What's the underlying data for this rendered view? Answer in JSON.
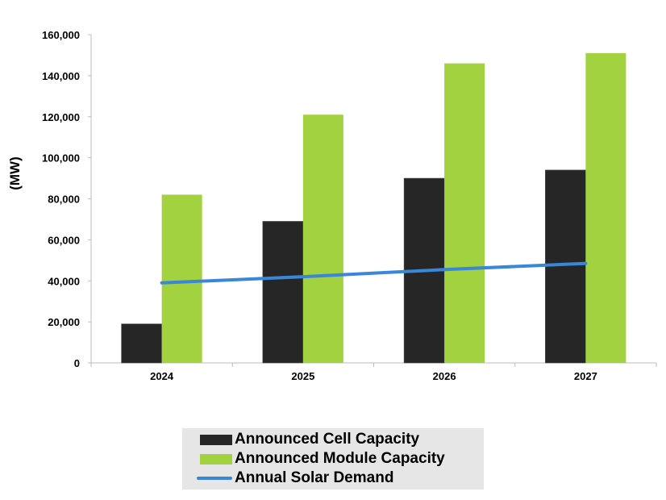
{
  "chart_data": {
    "type": "bar",
    "title": "",
    "xlabel": "",
    "ylabel": "(MW)",
    "ylim": [
      0,
      160000
    ],
    "yticks": [
      0,
      20000,
      40000,
      60000,
      80000,
      100000,
      120000,
      140000,
      160000
    ],
    "ytick_labels": [
      "0",
      "20,000",
      "40,000",
      "60,000",
      "80,000",
      "100,000",
      "120,000",
      "140,000",
      "160,000"
    ],
    "categories": [
      "2024",
      "2025",
      "2026",
      "2027"
    ],
    "series": [
      {
        "name": "Announced Cell Capacity",
        "type": "bar",
        "color": "#262626",
        "values": [
          19000,
          69000,
          90000,
          94000
        ]
      },
      {
        "name": "Announced Module Capacity",
        "type": "bar",
        "color": "#a2d23f",
        "values": [
          82000,
          121000,
          146000,
          151000
        ]
      },
      {
        "name": "Annual Solar Demand",
        "type": "line",
        "color": "#3a86d8",
        "values": [
          39000,
          42000,
          45500,
          48500
        ]
      }
    ],
    "grid": false,
    "legend_position": "bottom"
  }
}
